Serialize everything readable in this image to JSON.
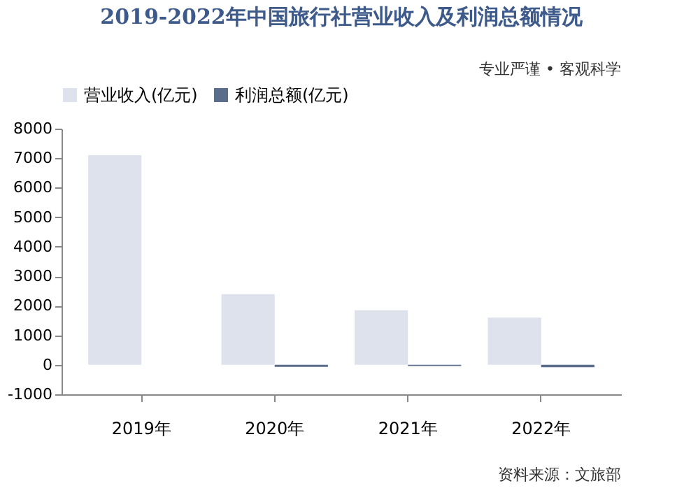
{
  "chart_data": {
    "type": "bar",
    "title": "2019-2022年中国旅行社营业收入及利润总额情况",
    "categories": [
      "2019年",
      "2020年",
      "2021年",
      "2022年"
    ],
    "series": [
      {
        "name": "营业收入(亿元)",
        "color": "#dde2ec",
        "values": [
          7100,
          2390,
          1850,
          1600
        ]
      },
      {
        "name": "利润总额(亿元)",
        "color": "#5a6e8c",
        "values": [
          0,
          -70,
          -40,
          -80
        ]
      }
    ],
    "ylim": [
      -1000,
      8000
    ],
    "yticks": [
      -1000,
      0,
      1000,
      2000,
      3000,
      4000,
      5000,
      6000,
      7000,
      8000
    ],
    "grid": false,
    "legend": "top",
    "annotations": [
      "专业严谨 • 客观科学",
      "资料来源：文旅部"
    ]
  }
}
